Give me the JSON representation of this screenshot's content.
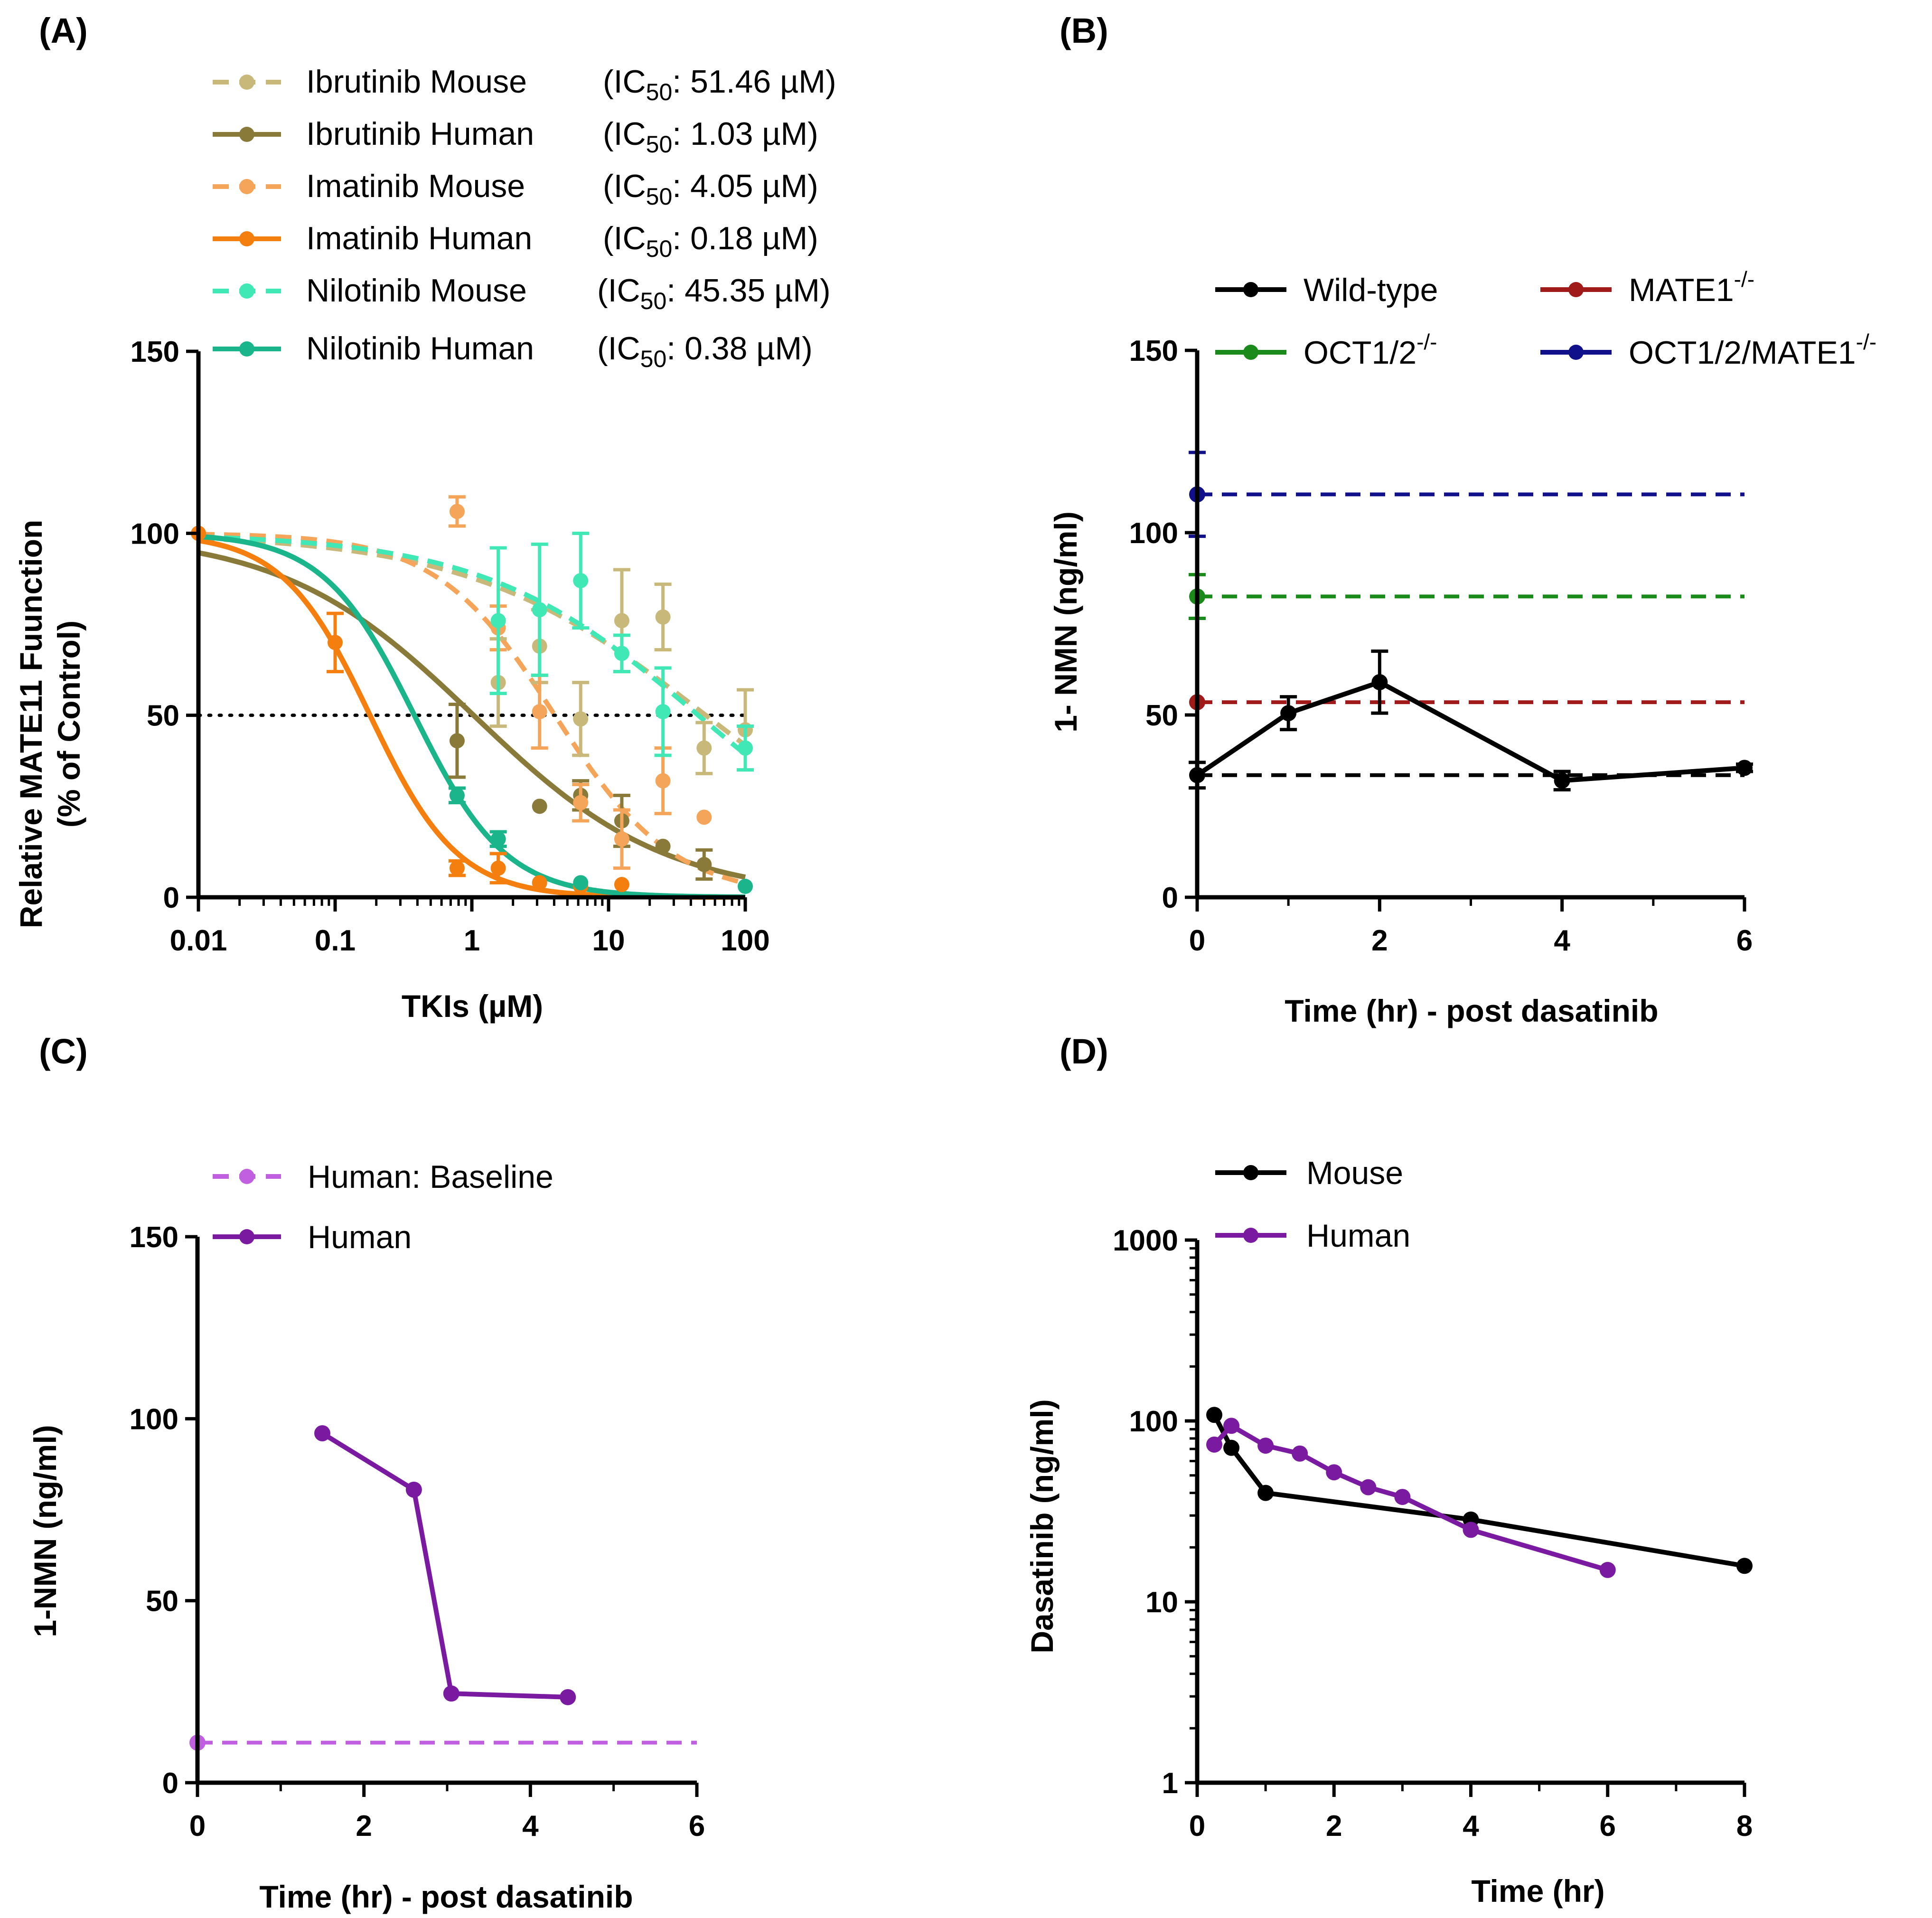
{
  "colors": {
    "ibrutinib_mouse": "#c8b97b",
    "ibrutinib_human": "#8a7a3a",
    "imatinib_mouse": "#f5a55a",
    "imatinib_human": "#f57f0e",
    "nilotinib_mouse": "#3fe8b5",
    "nilotinib_human": "#1ab58a",
    "wild_type": "#000000",
    "mate1_ko": "#a01a1a",
    "oct12_ko": "#1a8a1a",
    "oct12_mate1_ko": "#10108a",
    "human_baseline": "#c060e0",
    "human": "#7a1aa0",
    "mouse": "#000000",
    "reference_line": "#000000"
  },
  "chart_data": [
    {
      "panel": "(A)",
      "type": "scatter",
      "x_scale": "log",
      "xlabel": "TKIs (µM)",
      "ylabel": "Relative MATE11 Fuunction",
      "ylabel2": "(% of Control)",
      "xlim": [
        0.01,
        100
      ],
      "ylim": [
        0,
        150
      ],
      "xticks": [
        0.01,
        0.1,
        1,
        10,
        100
      ],
      "xtick_labels": [
        "0.01",
        "0.1",
        "1",
        "10",
        "100"
      ],
      "yticks": [
        0,
        50,
        100,
        150
      ],
      "reference_line": {
        "y": 50,
        "style": "dotted"
      },
      "series": [
        {
          "name": "Ibrutinib Mouse",
          "ic50_prefix": "(IC",
          "ic50_sub": "50",
          "ic50_suffix": ": 51.46 µM)",
          "ic50": 51.46,
          "hill": 0.5,
          "fit_style": "dashed",
          "color_key": "ibrutinib_mouse",
          "points": [
            [
              1.56,
              59,
              12
            ],
            [
              3.13,
              69,
              10
            ],
            [
              6.25,
              49,
              10
            ],
            [
              12.5,
              76,
              14
            ],
            [
              25,
              77,
              9
            ],
            [
              50,
              41,
              7
            ],
            [
              100,
              46,
              11
            ]
          ]
        },
        {
          "name": "Ibrutinib Human",
          "ic50_prefix": "(IC",
          "ic50_sub": "50",
          "ic50_suffix": ": 1.03 µM)",
          "ic50": 1.03,
          "hill": 0.62,
          "fit_style": "solid",
          "color_key": "ibrutinib_human",
          "points": [
            [
              0.78,
              43,
              10
            ],
            [
              3.13,
              25,
              0
            ],
            [
              6.25,
              28,
              4
            ],
            [
              12.5,
              21,
              7
            ],
            [
              25,
              14,
              0
            ],
            [
              50,
              9,
              4
            ]
          ]
        },
        {
          "name": "Imatinib Mouse",
          "ic50_prefix": "(IC",
          "ic50_sub": "50",
          "ic50_suffix": ": 4.05 µM)",
          "ic50": 4.05,
          "hill": 1.0,
          "fit_style": "dashed",
          "color_key": "imatinib_mouse",
          "points": [
            [
              0.01,
              100,
              0
            ],
            [
              0.78,
              106,
              4
            ],
            [
              1.56,
              74,
              6
            ],
            [
              3.13,
              51,
              10
            ],
            [
              6.25,
              26,
              5
            ],
            [
              12.5,
              16,
              8
            ],
            [
              25,
              32,
              9
            ],
            [
              50,
              22,
              0
            ]
          ]
        },
        {
          "name": "Imatinib Human",
          "ic50_prefix": "(IC",
          "ic50_sub": "50",
          "ic50_suffix": ": 0.18 µM)",
          "ic50": 0.18,
          "hill": 1.35,
          "fit_style": "solid",
          "color_key": "imatinib_human",
          "points": [
            [
              0.01,
              100,
              0
            ],
            [
              0.1,
              70,
              8
            ],
            [
              0.78,
              8,
              2
            ],
            [
              1.56,
              8,
              4
            ],
            [
              3.13,
              4,
              0
            ],
            [
              6.25,
              3,
              0
            ],
            [
              12.5,
              3.5,
              0
            ]
          ]
        },
        {
          "name": "Nilotinib Mouse",
          "ic50_prefix": "(IC",
          "ic50_sub": "50",
          "ic50_suffix": ": 45.35 µM)",
          "ic50": 45.35,
          "hill": 0.55,
          "fit_style": "dashed",
          "color_key": "nilotinib_mouse",
          "points": [
            [
              1.56,
              76,
              20
            ],
            [
              3.13,
              79,
              18
            ],
            [
              6.25,
              87,
              13
            ],
            [
              12.5,
              67,
              5
            ],
            [
              25,
              51,
              12
            ],
            [
              100,
              41,
              6
            ]
          ]
        },
        {
          "name": "Nilotinib Human",
          "ic50_prefix": "(IC",
          "ic50_sub": "50",
          "ic50_suffix": ": 0.38 µM)",
          "ic50": 0.38,
          "hill": 1.3,
          "fit_style": "solid",
          "color_key": "nilotinib_human",
          "points": [
            [
              0.78,
              28,
              2
            ],
            [
              1.56,
              16,
              2
            ],
            [
              6.25,
              4,
              0
            ],
            [
              100,
              3,
              0
            ]
          ]
        }
      ]
    },
    {
      "panel": "(B)",
      "type": "line",
      "xlabel": "Time (hr) - post dasatinib",
      "ylabel": "1- NMN (ng/ml)",
      "xlim": [
        0,
        6
      ],
      "ylim": [
        0,
        150
      ],
      "xticks": [
        0,
        2,
        4,
        6
      ],
      "yticks": [
        0,
        50,
        100,
        150
      ],
      "series": [
        {
          "name": "Wild-type",
          "sup": "",
          "color_key": "wild_type",
          "style": "solid",
          "x": [
            0,
            1,
            2,
            4,
            6
          ],
          "y": [
            33.5,
            50.5,
            59,
            32,
            35.5
          ],
          "err": [
            3.5,
            4.5,
            8.5,
            2.5,
            1
          ]
        },
        {
          "name": "MATE1",
          "sup": "-/-",
          "color_key": "mate1_ko",
          "style": "dashed",
          "x": [
            0
          ],
          "y": [
            53.5
          ],
          "err": [
            0
          ]
        },
        {
          "name": "OCT1/2",
          "sup": "-/-",
          "color_key": "oct12_ko",
          "style": "dashed",
          "x": [
            0
          ],
          "y": [
            82.5
          ],
          "err": [
            6
          ]
        },
        {
          "name": "OCT1/2/MATE1",
          "sup": "-/-",
          "color_key": "oct12_mate1_ko",
          "style": "dashed",
          "x": [
            0
          ],
          "y": [
            110.5
          ],
          "err": [
            11.5
          ]
        }
      ],
      "baselines": [
        {
          "color_key": "wild_type",
          "y": 33.5
        },
        {
          "color_key": "mate1_ko",
          "y": 53.5
        },
        {
          "color_key": "oct12_ko",
          "y": 82.5
        },
        {
          "color_key": "oct12_mate1_ko",
          "y": 110.5
        }
      ]
    },
    {
      "panel": "(C)",
      "type": "line",
      "xlabel": "Time (hr) - post dasatinib",
      "ylabel": "1-NMN (ng/ml)",
      "xlim": [
        0,
        6
      ],
      "ylim": [
        0,
        150
      ],
      "xticks": [
        0,
        2,
        4,
        6
      ],
      "yticks": [
        0,
        50,
        100,
        150
      ],
      "series": [
        {
          "name": "Human: Baseline",
          "color_key": "human_baseline",
          "style": "dashed",
          "x": [
            0
          ],
          "y": [
            11
          ]
        },
        {
          "name": "Human",
          "color_key": "human",
          "style": "solid",
          "x": [
            1.5,
            2.6,
            3.05,
            4.45
          ],
          "y": [
            96,
            80.5,
            24.5,
            23.5
          ]
        }
      ]
    },
    {
      "panel": "(D)",
      "type": "line",
      "y_scale": "log",
      "xlabel": "Time (hr)",
      "ylabel": "Dasatinib (ng/ml)",
      "xlim": [
        0,
        8
      ],
      "ylim": [
        1,
        1000
      ],
      "xticks": [
        0,
        2,
        4,
        6,
        8
      ],
      "yticks": [
        1,
        10,
        100,
        1000
      ],
      "series": [
        {
          "name": "Mouse",
          "color_key": "mouse",
          "style": "solid",
          "x": [
            0.25,
            0.5,
            1,
            4,
            8
          ],
          "y": [
            108,
            71,
            40,
            28.5,
            15.8
          ]
        },
        {
          "name": "Human",
          "color_key": "human",
          "style": "solid",
          "x": [
            0.25,
            0.5,
            1,
            1.5,
            2,
            2.5,
            3,
            4,
            6
          ],
          "y": [
            74,
            94,
            73,
            66,
            52,
            43,
            38,
            25,
            15
          ]
        }
      ]
    }
  ]
}
